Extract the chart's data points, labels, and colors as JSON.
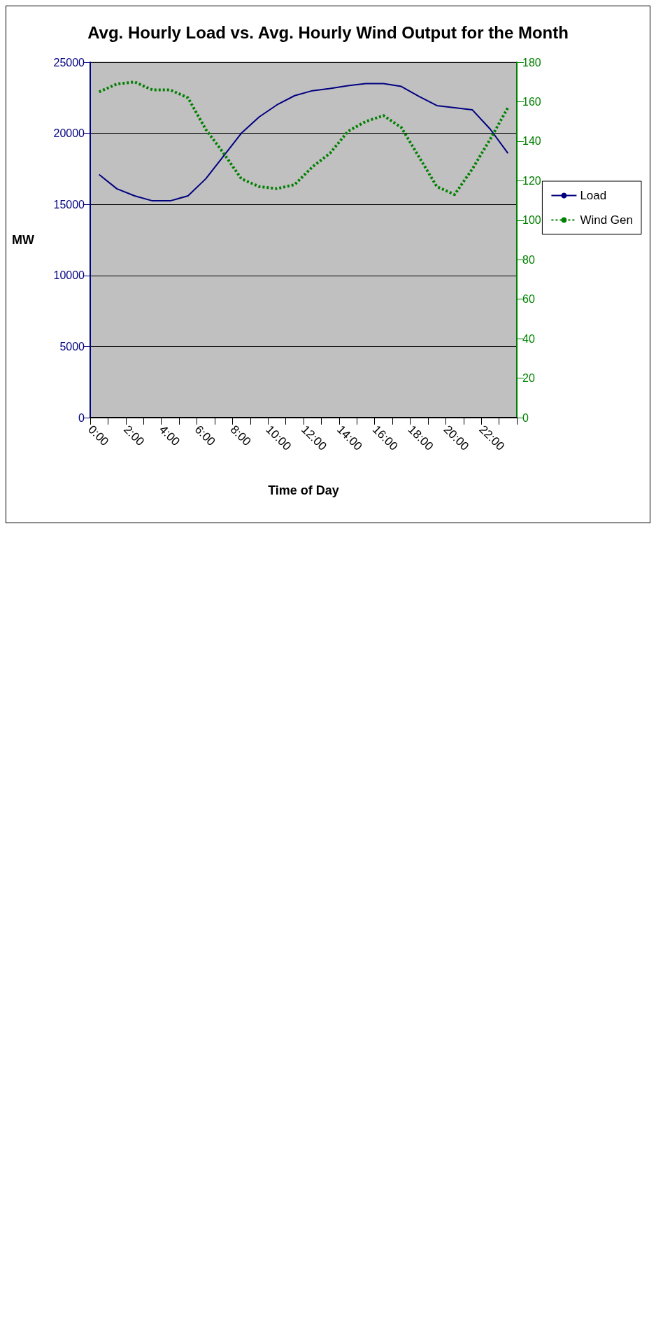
{
  "chart_data": {
    "type": "line",
    "title": "Avg. Hourly Load vs. Avg. Hourly Wind Output for the Month",
    "xlabel": "Time of Day",
    "ylabel": "MW",
    "x": [
      0.5,
      1.5,
      2.5,
      3.5,
      4.5,
      5.5,
      6.5,
      7.5,
      8.5,
      9.5,
      10.5,
      11.5,
      12.5,
      13.5,
      14.5,
      15.5,
      16.5,
      17.5,
      18.5,
      19.5,
      20.5,
      21.5,
      22.5,
      23.5
    ],
    "series": [
      {
        "name": "Load",
        "color": "#000080",
        "line_style": "solid",
        "values": [
          17100,
          16100,
          15600,
          15250,
          15250,
          15600,
          16800,
          18400,
          20000,
          21150,
          22000,
          22650,
          23000,
          23150,
          23350,
          23500,
          23500,
          23300,
          22600,
          21950,
          21800,
          21650,
          20300,
          18600
        ]
      },
      {
        "name": "Wind Gen",
        "color": "#008000",
        "line_style": "dashed",
        "axis": "y2",
        "values": [
          165,
          169,
          170,
          166,
          166,
          162,
          146,
          134,
          121,
          117,
          116,
          118,
          127,
          134,
          145,
          150,
          153,
          147,
          132,
          117,
          113,
          126,
          141,
          157
        ]
      }
    ],
    "xlim": [
      0,
      24
    ],
    "xticks": [
      {
        "value": 0,
        "label": "0:00"
      },
      {
        "value": 1,
        "label": null
      },
      {
        "value": 2,
        "label": "2:00"
      },
      {
        "value": 3,
        "label": null
      },
      {
        "value": 4,
        "label": "4:00"
      },
      {
        "value": 5,
        "label": null
      },
      {
        "value": 6,
        "label": "6:00"
      },
      {
        "value": 7,
        "label": null
      },
      {
        "value": 8,
        "label": "8:00"
      },
      {
        "value": 9,
        "label": null
      },
      {
        "value": 10,
        "label": "10:00"
      },
      {
        "value": 11,
        "label": null
      },
      {
        "value": 12,
        "label": "12:00"
      },
      {
        "value": 13,
        "label": null
      },
      {
        "value": 14,
        "label": "14:00"
      },
      {
        "value": 15,
        "label": null
      },
      {
        "value": 16,
        "label": "16:00"
      },
      {
        "value": 17,
        "label": null
      },
      {
        "value": 18,
        "label": "18:00"
      },
      {
        "value": 19,
        "label": null
      },
      {
        "value": 20,
        "label": "20:00"
      },
      {
        "value": 21,
        "label": null
      },
      {
        "value": 22,
        "label": "22:00"
      },
      {
        "value": 23,
        "label": null
      },
      {
        "value": 24,
        "label": null
      }
    ],
    "ylim": [
      0,
      25000
    ],
    "yticks": [
      0,
      5000,
      10000,
      15000,
      20000,
      25000
    ],
    "y2lim": [
      0,
      180
    ],
    "y2ticks": [
      0,
      20,
      40,
      60,
      80,
      100,
      120,
      140,
      160,
      180
    ],
    "grid": "y",
    "legend": "right",
    "marker": "none"
  }
}
